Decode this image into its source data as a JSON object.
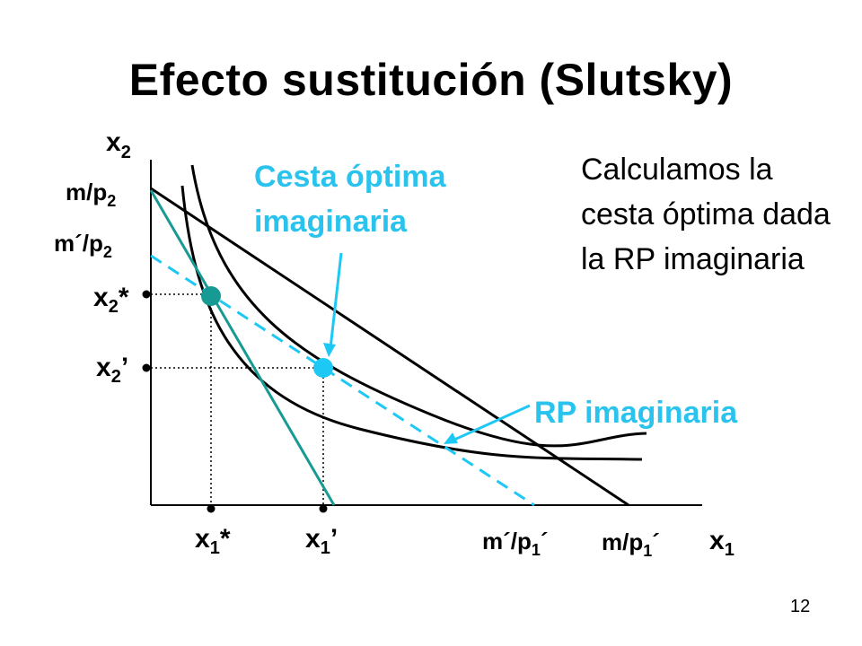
{
  "slide": {
    "title": "Efecto sustitución (Slutsky)",
    "page_number": "12",
    "note": "Calculamos la cesta óptima dada la RP imaginaria"
  },
  "labels": {
    "y_axis": {
      "base": "x",
      "sub": "2"
    },
    "x_axis": {
      "base": "x",
      "sub": "1"
    },
    "m_p2": {
      "base": "m/p",
      "sub": "2"
    },
    "m2_p2": {
      "base": "m´/p",
      "sub": "2"
    },
    "x2_star": {
      "base": "x",
      "sub": "2",
      "suffix": "*"
    },
    "x2_prime": {
      "base": "x",
      "sub": "2",
      "suffix": "’"
    },
    "x1_star": {
      "base": "x",
      "sub": "1",
      "suffix": "*"
    },
    "x1_prime": {
      "base": "x",
      "sub": "1",
      "suffix": "’"
    },
    "m2_p1": {
      "base": "m´/p",
      "sub": "1",
      "suffix": "´"
    },
    "m_p1": {
      "base": "m/p",
      "sub": "1",
      "suffix": "´"
    },
    "cesta_line1": "Cesta óptima",
    "cesta_line2": "imaginaria",
    "rp": "RP imaginaria"
  },
  "colors": {
    "axis": "#000000",
    "teal": "#179a93",
    "cyan": "#1ec8f5",
    "cyan_text": "#2ac3ee",
    "curve": "#000000"
  }
}
